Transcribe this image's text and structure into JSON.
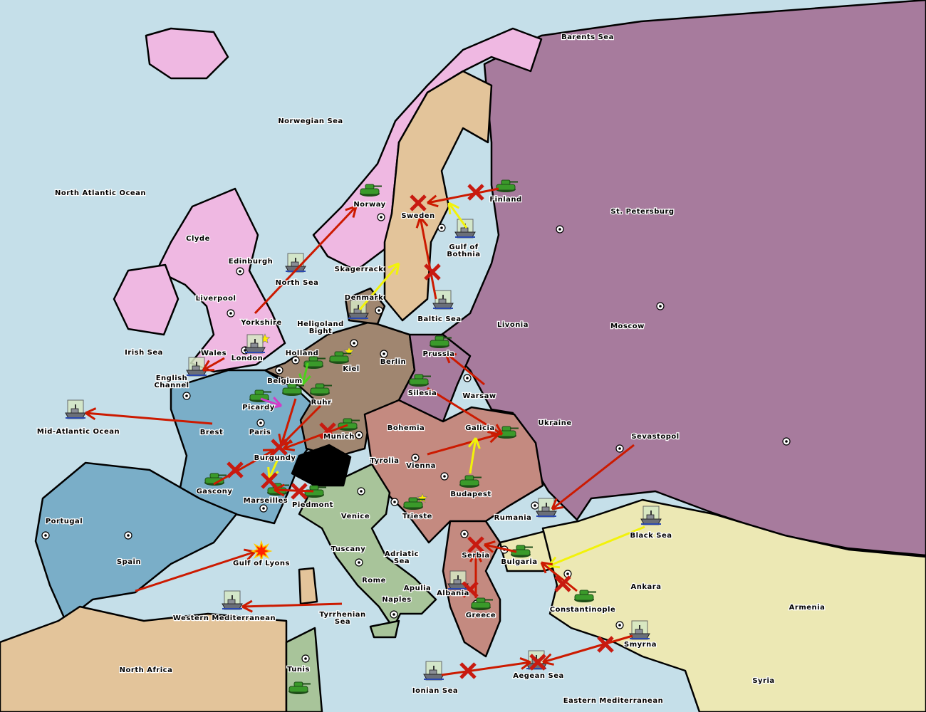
{
  "colors": {
    "sea": "#c5dfe9",
    "england": "#efb8e2",
    "france": "#7aaec8",
    "germany": "#a08670",
    "russia": "#a77b9d",
    "austria": "#c48a80",
    "italy": "#a8c49a",
    "turkey": "#ece8b4",
    "neutral": "#e3c49a",
    "impassable": "#000000",
    "order_failed": "#cc1a00",
    "order_support": "#f2f20a",
    "order_support_alt": "#d23cc8",
    "order_convoy": "#4cd01c",
    "army": "#3a9a2a",
    "fleet": "#6b6f78"
  },
  "labels": [
    "Barents Sea",
    "Norwegian Sea",
    "North Atlantic Ocean",
    "Norway",
    "Sweden",
    "Finland",
    "St. Petersburg",
    "Clyde",
    "Edinburgh",
    "North Sea",
    "Gulf of",
    "Bothnia",
    "Skagerrack",
    "Liverpool",
    "Denmark",
    "Baltic Sea",
    "Livonia",
    "Moscow",
    "Yorkshire",
    "Heligoland",
    "Bight",
    "Irish Sea",
    "Wales",
    "London",
    "Holland",
    "Kiel",
    "Berlin",
    "Prussia",
    "English",
    "Channel",
    "Belgium",
    "Silesia",
    "Warsaw",
    "Picardy",
    "Ruhr",
    "Mid-Atlantic Ocean",
    "Brest",
    "Paris",
    "Munich",
    "Bohemia",
    "Galicia",
    "Ukraine",
    "Sevastopol",
    "Burgundy",
    "Tyrolia",
    "Vienna",
    "Gascony",
    "Budapest",
    "Marseilles",
    "Piedmont",
    "Portugal",
    "Venice",
    "Trieste",
    "Rumania",
    "Black Sea",
    "Tuscany",
    "Adriatic",
    "Sea",
    "Serbia",
    "Bulgaria",
    "Spain",
    "Gulf of Lyons",
    "Rome",
    "Apulia",
    "Ankara",
    "Albania",
    "Naples",
    "Armenia",
    "Constantinople",
    "Tyrrhenian",
    "Sea",
    "Western Mediterranean",
    "Greece",
    "Smyrna",
    "North Africa",
    "Tunis",
    "Aegean Sea",
    "Syria",
    "Ionian Sea",
    "Eastern Mediterranean"
  ],
  "units": [
    {
      "type": "army",
      "province": "Norway",
      "icon": "tank-icon"
    },
    {
      "type": "army",
      "province": "Finland",
      "icon": "tank-icon"
    },
    {
      "type": "army",
      "province": "Kiel",
      "icon": "tank-icon"
    },
    {
      "type": "army",
      "province": "Holland",
      "icon": "tank-icon"
    },
    {
      "type": "army",
      "province": "Belgium",
      "icon": "tank-icon"
    },
    {
      "type": "army",
      "province": "Ruhr",
      "icon": "tank-icon"
    },
    {
      "type": "army",
      "province": "Picardy",
      "icon": "tank-icon"
    },
    {
      "type": "army",
      "province": "Munich",
      "icon": "tank-icon"
    },
    {
      "type": "army",
      "province": "Prussia",
      "icon": "tank-icon"
    },
    {
      "type": "army",
      "province": "Silesia",
      "icon": "tank-icon"
    },
    {
      "type": "army",
      "province": "Galicia",
      "icon": "tank-icon"
    },
    {
      "type": "army",
      "province": "Gascony",
      "icon": "tank-icon"
    },
    {
      "type": "army",
      "province": "Marseilles",
      "icon": "tank-icon"
    },
    {
      "type": "army",
      "province": "Piedmont",
      "icon": "tank-icon"
    },
    {
      "type": "army",
      "province": "Budapest",
      "icon": "tank-icon"
    },
    {
      "type": "army",
      "province": "Trieste",
      "icon": "tank-icon"
    },
    {
      "type": "army",
      "province": "Bulgaria",
      "icon": "tank-icon"
    },
    {
      "type": "army",
      "province": "Constantinople",
      "icon": "tank-icon"
    },
    {
      "type": "army",
      "province": "Greece",
      "icon": "tank-icon"
    },
    {
      "type": "army",
      "province": "Tunis",
      "icon": "tank-icon"
    },
    {
      "type": "fleet",
      "province": "North Sea",
      "icon": "battleship-icon"
    },
    {
      "type": "fleet",
      "province": "London",
      "icon": "battleship-icon"
    },
    {
      "type": "fleet",
      "province": "English Channel",
      "icon": "battleship-icon"
    },
    {
      "type": "fleet",
      "province": "Mid-Atlantic Ocean",
      "icon": "battleship-icon"
    },
    {
      "type": "fleet",
      "province": "Gulf of Bothnia",
      "icon": "battleship-icon"
    },
    {
      "type": "fleet",
      "province": "Baltic Sea",
      "icon": "battleship-icon"
    },
    {
      "type": "fleet",
      "province": "Denmark",
      "icon": "battleship-icon"
    },
    {
      "type": "fleet",
      "province": "Rumania",
      "icon": "battleship-icon"
    },
    {
      "type": "fleet",
      "province": "Black Sea",
      "icon": "battleship-icon"
    },
    {
      "type": "fleet",
      "province": "Western Mediterranean",
      "icon": "battleship-icon"
    },
    {
      "type": "fleet",
      "province": "Ionian Sea",
      "icon": "battleship-icon"
    },
    {
      "type": "fleet",
      "province": "Aegean Sea",
      "icon": "battleship-icon"
    },
    {
      "type": "fleet",
      "province": "Smyrna",
      "icon": "battleship-icon"
    },
    {
      "type": "fleet",
      "province": "Albania",
      "icon": "battleship-icon"
    }
  ],
  "orders": [
    {
      "from": "London",
      "to": "Norway",
      "kind": "move"
    },
    {
      "from": "Finland",
      "to": "Sweden",
      "kind": "move"
    },
    {
      "from": "Baltic Sea",
      "to": "Sweden",
      "kind": "move"
    },
    {
      "from": "Gulf of Bothnia",
      "to": "Sweden",
      "kind": "support"
    },
    {
      "from": "Denmark",
      "to": "Sweden",
      "kind": "support"
    },
    {
      "from": "London",
      "to": "English Channel",
      "kind": "move"
    },
    {
      "from": "Brest",
      "to": "Mid-Atlantic Ocean",
      "kind": "move"
    },
    {
      "from": "Munich",
      "to": "Burgundy",
      "kind": "move"
    },
    {
      "from": "Ruhr",
      "to": "Burgundy",
      "kind": "move"
    },
    {
      "from": "Belgium",
      "to": "Burgundy",
      "kind": "move"
    },
    {
      "from": "Gascony",
      "to": "Burgundy",
      "kind": "move"
    },
    {
      "from": "Piedmont",
      "to": "Marseilles",
      "kind": "move"
    },
    {
      "from": "Burgundy",
      "to": "Marseilles",
      "kind": "support"
    },
    {
      "from": "Spain",
      "to": "Gulf of Lyons",
      "kind": "move"
    },
    {
      "from": "Tyrrhenian Sea",
      "to": "Western Mediterranean",
      "kind": "move"
    },
    {
      "from": "Tyrolia",
      "to": "Galicia",
      "kind": "move"
    },
    {
      "from": "Budapest",
      "to": "Galicia",
      "kind": "support"
    },
    {
      "from": "Silesia",
      "to": "Galicia",
      "kind": "move"
    },
    {
      "from": "Warsaw",
      "to": "Prussia",
      "kind": "move"
    },
    {
      "from": "Sevastopol",
      "to": "Rumania",
      "kind": "move"
    },
    {
      "from": "Black Sea",
      "to": "Bulgaria",
      "kind": "support"
    },
    {
      "from": "Bulgaria",
      "to": "Serbia",
      "kind": "move"
    },
    {
      "from": "Greece",
      "to": "Serbia",
      "kind": "move"
    },
    {
      "from": "Constantinople",
      "to": "Bulgaria",
      "kind": "move"
    },
    {
      "from": "Smyrna",
      "to": "Aegean Sea",
      "kind": "move"
    },
    {
      "from": "Ionian Sea",
      "to": "Aegean Sea",
      "kind": "move"
    },
    {
      "from": "Picardy",
      "to": "Belgium",
      "kind": "support_alt"
    },
    {
      "from": "Holland",
      "to": "Belgium",
      "kind": "convoy"
    }
  ],
  "markers": {
    "supply_center_icon": "supply-center-icon",
    "home_star_icon": "star-icon",
    "failed_icon": "x-mark-icon",
    "dislodged_icon": "explosion-icon"
  }
}
